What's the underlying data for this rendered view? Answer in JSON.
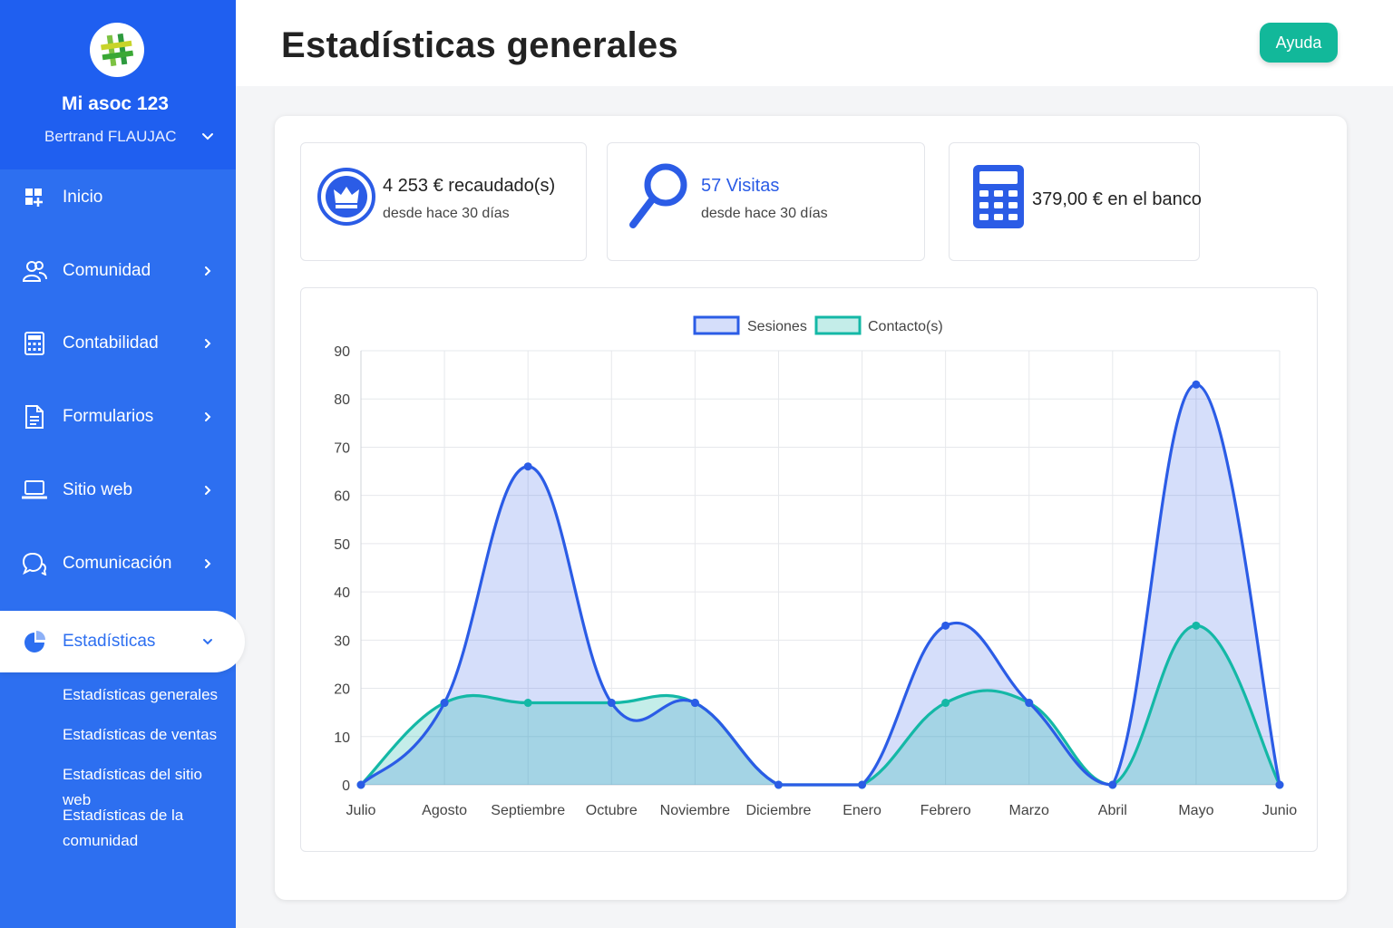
{
  "sidebar": {
    "org_name": "Mi asoc 123",
    "user_name": "Bertrand FLAUJAC",
    "items": [
      {
        "label": "Inicio",
        "icon": "dashboard-icon"
      },
      {
        "label": "Comunidad",
        "icon": "users-icon"
      },
      {
        "label": "Contabilidad",
        "icon": "calculator-icon"
      },
      {
        "label": "Formularios",
        "icon": "document-icon"
      },
      {
        "label": "Sitio web",
        "icon": "laptop-icon"
      },
      {
        "label": "Comunicación",
        "icon": "chat-icon"
      },
      {
        "label": "Estadísticas",
        "icon": "pie-chart-icon"
      }
    ],
    "subitems": [
      "Estadísticas generales",
      "Estadísticas de ventas",
      "Estadísticas del sitio web",
      "Estadísticas de la comunidad"
    ],
    "accent": "#2d6ff0"
  },
  "header": {
    "title": "Estadísticas generales",
    "help_label": "Ayuda",
    "help_color": "#12b89a"
  },
  "stats": [
    {
      "main": "4 253 € recaudado(s)",
      "sub": "desde hace 30 días",
      "icon": "crown-icon"
    },
    {
      "main": "57 Visitas",
      "sub": "desde hace 30 días",
      "icon": "search-icon"
    },
    {
      "main": "379,00 € en el banco",
      "sub": "",
      "icon": "calculator-icon"
    }
  ],
  "chart_data": {
    "type": "area",
    "categories": [
      "Julio",
      "Agosto",
      "Septiembre",
      "Octubre",
      "Noviembre",
      "Diciembre",
      "Enero",
      "Febrero",
      "Marzo",
      "Abril",
      "Mayo",
      "Junio"
    ],
    "series": [
      {
        "name": "Sesiones",
        "values": [
          0,
          17,
          66,
          17,
          17,
          0,
          0,
          33,
          17,
          0,
          83,
          0
        ],
        "color": "#2b5ce6"
      },
      {
        "name": "Contacto(s)",
        "values": [
          0,
          17,
          17,
          17,
          17,
          0,
          0,
          17,
          17,
          0,
          33,
          0
        ],
        "color": "#14b8a6"
      }
    ],
    "yticks": [
      0,
      10,
      20,
      30,
      40,
      50,
      60,
      70,
      80,
      90
    ],
    "ylim": [
      0,
      90
    ],
    "grid": true,
    "legend": "top-center"
  }
}
